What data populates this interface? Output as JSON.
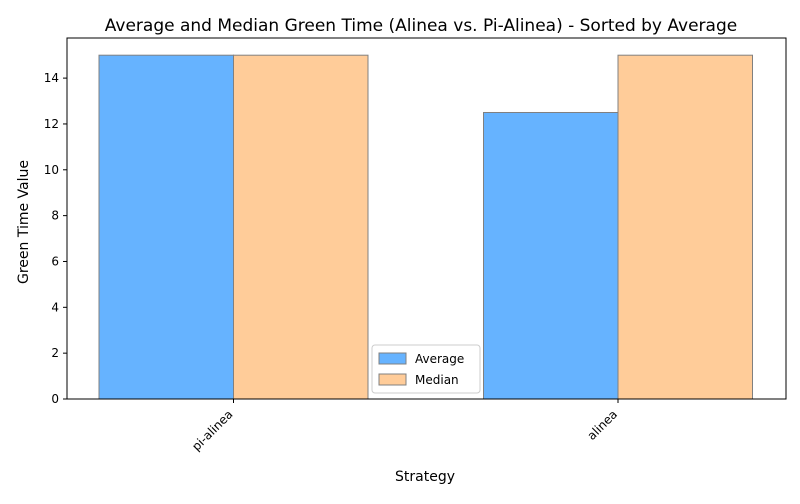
{
  "chart_data": {
    "type": "bar",
    "title": "Average and Median Green Time (Alinea vs. Pi-Alinea) - Sorted by Average",
    "xlabel": "Strategy",
    "ylabel": "Green Time Value",
    "categories": [
      "pi-alinea",
      "alinea"
    ],
    "series": [
      {
        "name": "Average",
        "values": [
          15.0,
          12.5
        ],
        "color": "#66b3ff"
      },
      {
        "name": "Median",
        "values": [
          15.0,
          15.0
        ],
        "color": "#ffcc99"
      }
    ],
    "ylim": [
      0,
      15.75
    ],
    "yticks": [
      0,
      2,
      4,
      6,
      8,
      10,
      12,
      14
    ],
    "grid": false,
    "legend_position": "bottom-center",
    "bar_edge_color": "#808080"
  }
}
